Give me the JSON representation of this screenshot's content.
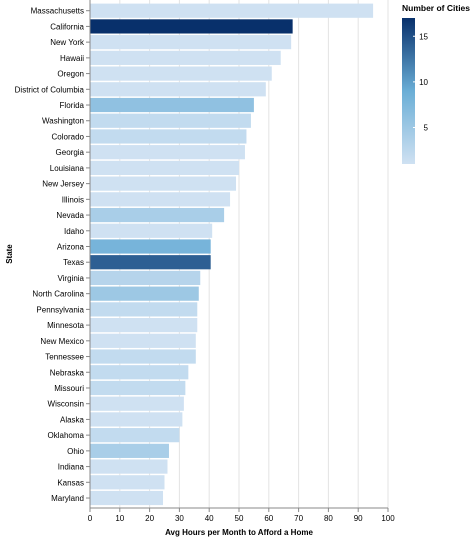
{
  "chart_data": {
    "type": "bar",
    "orientation": "horizontal",
    "xlabel": "Avg Hours per Month to Afford a Home",
    "ylabel": "State",
    "xlim": [
      0,
      100
    ],
    "x_ticks": [
      "0",
      "10",
      "20",
      "30",
      "40",
      "50",
      "60",
      "70",
      "80",
      "90",
      "100"
    ],
    "grid": true,
    "color_legend": {
      "title": "Number of Cities",
      "range": [
        1,
        17
      ],
      "ticks": [
        "15",
        "10",
        "5"
      ],
      "color_low": "#cfe1f2",
      "color_high": "#08306b",
      "placement": "right"
    },
    "bars": [
      {
        "state": "Massachusetts",
        "value": 95,
        "cities": 1
      },
      {
        "state": "California",
        "value": 68,
        "cities": 17
      },
      {
        "state": "New York",
        "value": 67.5,
        "cities": 1
      },
      {
        "state": "Hawaii",
        "value": 64,
        "cities": 1
      },
      {
        "state": "Oregon",
        "value": 61,
        "cities": 1
      },
      {
        "state": "District of Columbia",
        "value": 59,
        "cities": 1
      },
      {
        "state": "Florida",
        "value": 55,
        "cities": 6
      },
      {
        "state": "Washington",
        "value": 54,
        "cities": 2
      },
      {
        "state": "Colorado",
        "value": 52.5,
        "cities": 2
      },
      {
        "state": "Georgia",
        "value": 52,
        "cities": 1
      },
      {
        "state": "Louisiana",
        "value": 50,
        "cities": 1
      },
      {
        "state": "New Jersey",
        "value": 49,
        "cities": 1
      },
      {
        "state": "Illinois",
        "value": 47,
        "cities": 1
      },
      {
        "state": "Nevada",
        "value": 45,
        "cities": 4
      },
      {
        "state": "Idaho",
        "value": 41,
        "cities": 1
      },
      {
        "state": "Arizona",
        "value": 40.5,
        "cities": 8
      },
      {
        "state": "Texas",
        "value": 40.5,
        "cities": 14
      },
      {
        "state": "Virginia",
        "value": 37,
        "cities": 3
      },
      {
        "state": "North Carolina",
        "value": 36.5,
        "cities": 5
      },
      {
        "state": "Pennsylvania",
        "value": 36,
        "cities": 2
      },
      {
        "state": "Minnesota",
        "value": 36,
        "cities": 1
      },
      {
        "state": "New Mexico",
        "value": 35.5,
        "cities": 1
      },
      {
        "state": "Tennessee",
        "value": 35.5,
        "cities": 2
      },
      {
        "state": "Nebraska",
        "value": 33,
        "cities": 2
      },
      {
        "state": "Missouri",
        "value": 32,
        "cities": 2
      },
      {
        "state": "Wisconsin",
        "value": 31.5,
        "cities": 1
      },
      {
        "state": "Alaska",
        "value": 31,
        "cities": 1
      },
      {
        "state": "Oklahoma",
        "value": 30,
        "cities": 2
      },
      {
        "state": "Ohio",
        "value": 26.5,
        "cities": 4
      },
      {
        "state": "Indiana",
        "value": 26,
        "cities": 1
      },
      {
        "state": "Kansas",
        "value": 25,
        "cities": 1
      },
      {
        "state": "Maryland",
        "value": 24.5,
        "cities": 1
      }
    ]
  }
}
